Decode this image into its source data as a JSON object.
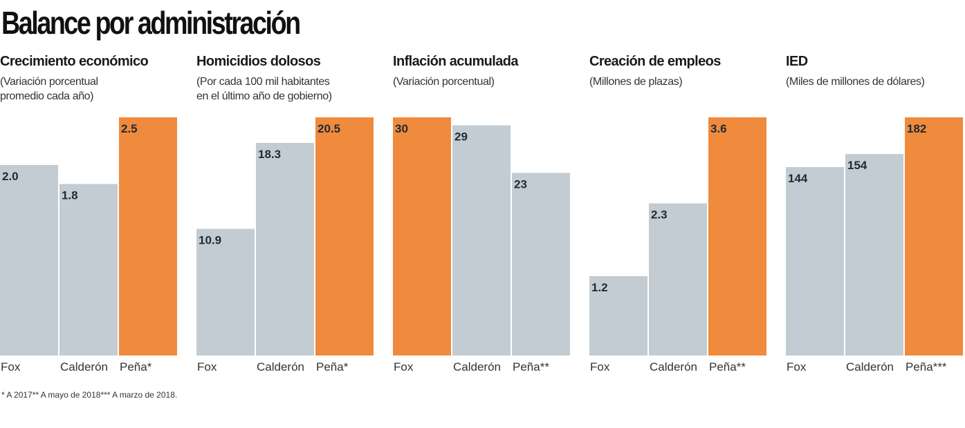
{
  "title": "Balance por administración",
  "footnote": "* A 2017** A mayo de 2018*** A marzo de 2018.",
  "colors": {
    "base_bar": "#c3ccd2",
    "highlight_bar": "#f08a3c"
  },
  "chart_data": [
    {
      "type": "bar",
      "title": "Crecimiento económico",
      "subtitle": "(Variación porcentual\npromedio cada año)",
      "categories": [
        "Fox",
        "Calderón",
        "Peña*"
      ],
      "values": [
        2.0,
        1.8,
        2.5
      ],
      "value_labels": [
        "2.0",
        "1.8",
        "2.5"
      ],
      "highlight": [
        false,
        false,
        true
      ],
      "ylim": [
        0,
        2.5
      ]
    },
    {
      "type": "bar",
      "title": "Homicidios dolosos",
      "subtitle": "(Por cada 100 mil habitantes\nen el último año de gobierno)",
      "categories": [
        "Fox",
        "Calderón",
        "Peña*"
      ],
      "values": [
        10.9,
        18.3,
        20.5
      ],
      "value_labels": [
        "10.9",
        "18.3",
        "20.5"
      ],
      "highlight": [
        false,
        false,
        true
      ],
      "ylim": [
        0,
        20.5
      ]
    },
    {
      "type": "bar",
      "title": "Inflación acumulada",
      "subtitle": "(Variación porcentual)",
      "categories": [
        "Fox",
        "Calderón",
        "Peña**"
      ],
      "values": [
        30,
        29,
        23
      ],
      "value_labels": [
        "30",
        "29",
        "23"
      ],
      "highlight": [
        true,
        false,
        false
      ],
      "ylim": [
        0,
        30
      ]
    },
    {
      "type": "bar",
      "title": "Creación de empleos",
      "subtitle": "(Millones de plazas)",
      "categories": [
        "Fox",
        "Calderón",
        "Peña**"
      ],
      "values": [
        1.2,
        2.3,
        3.6
      ],
      "value_labels": [
        "1.2",
        "2.3",
        "3.6"
      ],
      "highlight": [
        false,
        false,
        true
      ],
      "ylim": [
        0,
        3.6
      ]
    },
    {
      "type": "bar",
      "title": "IED",
      "subtitle": "(Miles de millones de dólares)",
      "categories": [
        "Fox",
        "Calderón",
        "Peña***"
      ],
      "values": [
        144,
        154,
        182
      ],
      "value_labels": [
        "144",
        "154",
        "182"
      ],
      "highlight": [
        false,
        false,
        true
      ],
      "ylim": [
        0,
        182
      ]
    }
  ]
}
